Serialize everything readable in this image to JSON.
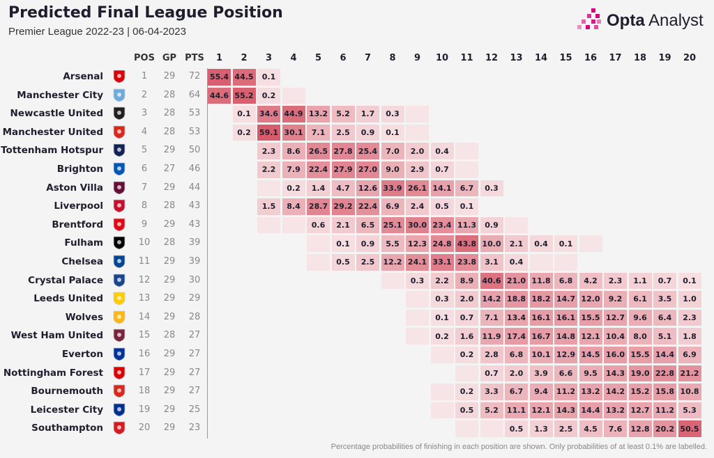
{
  "header": {
    "title": "Predicted Final League Position",
    "subtitle": "Premier League 2022-23 | 06-04-2023",
    "brand_bold": "Opta",
    "brand_light": " Analyst",
    "footnote": "Percentage probabilities of finishing in each position are shown. Only probabilities of at least 0.1% are labelled."
  },
  "colors": {
    "cell_low": "#f7e4e6",
    "cell_high": "#d9606f",
    "brand_pink": "#d6007e"
  },
  "chart_data": {
    "type": "heatmap",
    "columns": {
      "pos": "POS",
      "gp": "GP",
      "pts": "PTS"
    },
    "positions": [
      "1",
      "2",
      "3",
      "4",
      "5",
      "6",
      "7",
      "8",
      "9",
      "10",
      "11",
      "12",
      "13",
      "14",
      "15",
      "16",
      "17",
      "18",
      "19",
      "20"
    ],
    "teams": [
      {
        "name": "Arsenal",
        "crest": "arsenal-crest",
        "pos": "1",
        "gp": "29",
        "pts": "72",
        "start": 1,
        "values": [
          "55.4",
          "44.5",
          "0.1"
        ]
      },
      {
        "name": "Manchester City",
        "crest": "man-city-crest",
        "pos": "2",
        "gp": "28",
        "pts": "64",
        "start": 1,
        "values": [
          "44.6",
          "55.2",
          "0.2",
          ""
        ]
      },
      {
        "name": "Newcastle United",
        "crest": "newcastle-crest",
        "pos": "3",
        "gp": "28",
        "pts": "53",
        "start": 2,
        "values": [
          "0.1",
          "34.6",
          "44.9",
          "13.2",
          "5.2",
          "1.7",
          "0.3",
          ""
        ]
      },
      {
        "name": "Manchester United",
        "crest": "man-utd-crest",
        "pos": "4",
        "gp": "28",
        "pts": "53",
        "start": 2,
        "values": [
          "0.2",
          "59.1",
          "30.1",
          "7.1",
          "2.5",
          "0.9",
          "0.1",
          ""
        ]
      },
      {
        "name": "Tottenham Hotspur",
        "crest": "spurs-crest",
        "pos": "5",
        "gp": "29",
        "pts": "50",
        "start": 3,
        "values": [
          "2.3",
          "8.6",
          "26.5",
          "27.8",
          "25.4",
          "7.0",
          "2.0",
          "0.4",
          ""
        ]
      },
      {
        "name": "Brighton",
        "crest": "brighton-crest",
        "pos": "6",
        "gp": "27",
        "pts": "46",
        "start": 3,
        "values": [
          "2.2",
          "7.9",
          "22.4",
          "27.9",
          "27.0",
          "9.0",
          "2.9",
          "0.7",
          ""
        ]
      },
      {
        "name": "Aston Villa",
        "crest": "aston-villa-crest",
        "pos": "7",
        "gp": "29",
        "pts": "44",
        "start": 3,
        "values": [
          "",
          "0.2",
          "1.4",
          "4.7",
          "12.6",
          "33.9",
          "26.1",
          "14.1",
          "6.7",
          "0.3"
        ]
      },
      {
        "name": "Liverpool",
        "crest": "liverpool-crest",
        "pos": "8",
        "gp": "28",
        "pts": "43",
        "start": 3,
        "values": [
          "1.5",
          "8.4",
          "28.7",
          "29.2",
          "22.4",
          "6.9",
          "2.4",
          "0.5",
          "0.1"
        ]
      },
      {
        "name": "Brentford",
        "crest": "brentford-crest",
        "pos": "9",
        "gp": "29",
        "pts": "43",
        "start": 3,
        "values": [
          "",
          "",
          "0.6",
          "2.1",
          "6.5",
          "25.1",
          "30.0",
          "23.4",
          "11.3",
          "0.9",
          ""
        ]
      },
      {
        "name": "Fulham",
        "crest": "fulham-crest",
        "pos": "10",
        "gp": "28",
        "pts": "39",
        "start": 5,
        "values": [
          "",
          "0.1",
          "0.9",
          "5.5",
          "12.3",
          "24.8",
          "43.8",
          "10.0",
          "2.1",
          "0.4",
          "0.1",
          ""
        ]
      },
      {
        "name": "Chelsea",
        "crest": "chelsea-crest",
        "pos": "11",
        "gp": "29",
        "pts": "39",
        "start": 5,
        "values": [
          "",
          "0.5",
          "2.5",
          "12.2",
          "24.1",
          "33.1",
          "23.8",
          "3.1",
          "0.4",
          "",
          ""
        ]
      },
      {
        "name": "Crystal Palace",
        "crest": "crystal-palace-crest",
        "pos": "12",
        "gp": "29",
        "pts": "30",
        "start": 8,
        "values": [
          "",
          "0.3",
          "2.2",
          "8.9",
          "40.6",
          "21.0",
          "11.8",
          "6.8",
          "4.2",
          "2.3",
          "1.1",
          "0.7",
          "0.1"
        ]
      },
      {
        "name": "Leeds United",
        "crest": "leeds-crest",
        "pos": "13",
        "gp": "29",
        "pts": "29",
        "start": 9,
        "values": [
          "",
          "0.3",
          "2.0",
          "14.2",
          "18.8",
          "18.2",
          "14.7",
          "12.0",
          "9.2",
          "6.1",
          "3.5",
          "1.0"
        ]
      },
      {
        "name": "Wolves",
        "crest": "wolves-crest",
        "pos": "14",
        "gp": "29",
        "pts": "28",
        "start": 9,
        "values": [
          "",
          "0.1",
          "0.7",
          "7.1",
          "13.4",
          "16.1",
          "16.1",
          "15.5",
          "12.7",
          "9.6",
          "6.4",
          "2.3"
        ]
      },
      {
        "name": "West Ham United",
        "crest": "west-ham-crest",
        "pos": "15",
        "gp": "28",
        "pts": "27",
        "start": 9,
        "values": [
          "",
          "0.2",
          "1.6",
          "11.9",
          "17.4",
          "16.7",
          "14.8",
          "12.1",
          "10.4",
          "8.0",
          "5.1",
          "1.8"
        ]
      },
      {
        "name": "Everton",
        "crest": "everton-crest",
        "pos": "16",
        "gp": "29",
        "pts": "27",
        "start": 10,
        "values": [
          "",
          "0.2",
          "2.8",
          "6.8",
          "10.1",
          "12.9",
          "14.5",
          "16.0",
          "15.5",
          "14.4",
          "6.9"
        ]
      },
      {
        "name": "Nottingham Forest",
        "crest": "forest-crest",
        "pos": "17",
        "gp": "29",
        "pts": "27",
        "start": 11,
        "values": [
          "",
          "0.7",
          "2.0",
          "3.9",
          "6.6",
          "9.5",
          "14.3",
          "19.0",
          "22.8",
          "21.2"
        ]
      },
      {
        "name": "Bournemouth",
        "crest": "bournemouth-crest",
        "pos": "18",
        "gp": "29",
        "pts": "27",
        "start": 10,
        "values": [
          "",
          "0.2",
          "3.3",
          "6.7",
          "9.4",
          "11.2",
          "13.2",
          "14.2",
          "15.2",
          "15.8",
          "10.8"
        ]
      },
      {
        "name": "Leicester City",
        "crest": "leicester-crest",
        "pos": "19",
        "gp": "29",
        "pts": "25",
        "start": 10,
        "values": [
          "",
          "0.5",
          "5.2",
          "11.1",
          "12.1",
          "14.3",
          "14.4",
          "13.2",
          "12.7",
          "11.2",
          "5.3"
        ]
      },
      {
        "name": "Southampton",
        "crest": "southampton-crest",
        "pos": "20",
        "gp": "29",
        "pts": "23",
        "start": 11,
        "values": [
          "",
          "",
          "0.5",
          "1.3",
          "2.5",
          "4.5",
          "7.6",
          "12.8",
          "20.2",
          "50.5"
        ]
      }
    ]
  }
}
